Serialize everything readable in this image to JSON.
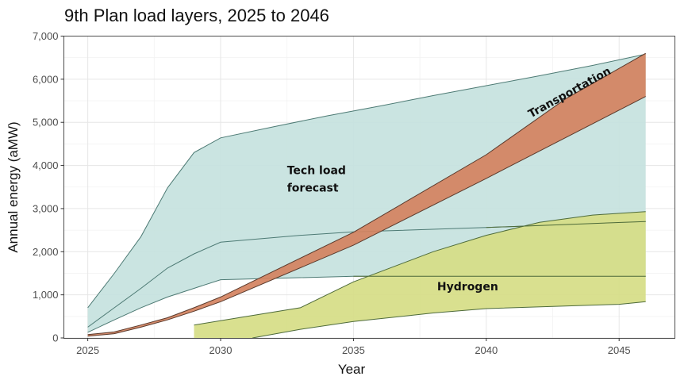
{
  "chart_data": {
    "type": "area",
    "title": "9th Plan load layers, 2025 to 2046",
    "xlabel": "Year",
    "ylabel": "Annual energy (aMW)",
    "xlim": [
      2024.1,
      2047.1
    ],
    "ylim": [
      0,
      7000
    ],
    "x_ticks": [
      2025,
      2030,
      2035,
      2040,
      2045
    ],
    "x_tick_labels": [
      "2025",
      "2030",
      "2035",
      "2040",
      "2045"
    ],
    "y_ticks": [
      0,
      1000,
      2000,
      3000,
      4000,
      5000,
      6000,
      7000
    ],
    "y_tick_labels": [
      "0",
      "1,000",
      "2,000",
      "3,000",
      "4,000",
      "5,000",
      "6,000",
      "7,000"
    ],
    "grid": true,
    "legend": "none",
    "series": [
      {
        "name": "Tech load forecast",
        "fill": "#c5e2de",
        "line": "#4d7a74",
        "upper": [
          [
            2025,
            700
          ],
          [
            2026,
            1500
          ],
          [
            2027,
            2350
          ],
          [
            2028,
            3480
          ],
          [
            2029,
            4300
          ],
          [
            2030,
            4640
          ],
          [
            2032,
            4900
          ],
          [
            2034,
            5150
          ],
          [
            2036,
            5380
          ],
          [
            2038,
            5620
          ],
          [
            2040,
            5850
          ],
          [
            2042,
            6080
          ],
          [
            2044,
            6320
          ],
          [
            2046,
            6580
          ]
        ],
        "middle": [
          [
            2025,
            250
          ],
          [
            2026,
            700
          ],
          [
            2027,
            1150
          ],
          [
            2028,
            1620
          ],
          [
            2029,
            1950
          ],
          [
            2030,
            2220
          ],
          [
            2033,
            2380
          ],
          [
            2035,
            2460
          ],
          [
            2040,
            2560
          ],
          [
            2046,
            2700
          ]
        ],
        "lower": [
          [
            2025,
            130
          ],
          [
            2026,
            420
          ],
          [
            2027,
            700
          ],
          [
            2028,
            950
          ],
          [
            2029,
            1150
          ],
          [
            2030,
            1350
          ],
          [
            2035,
            1430
          ],
          [
            2046,
            1430
          ]
        ]
      },
      {
        "name": "Transportation",
        "fill": "#d4825f",
        "line": "#5a3a2c",
        "upper": [
          [
            2025,
            80
          ],
          [
            2026,
            140
          ],
          [
            2027,
            300
          ],
          [
            2028,
            470
          ],
          [
            2029,
            700
          ],
          [
            2030,
            950
          ],
          [
            2035,
            2450
          ],
          [
            2040,
            4250
          ],
          [
            2043,
            5550
          ],
          [
            2046,
            6600
          ]
        ],
        "lower": [
          [
            2025,
            40
          ],
          [
            2026,
            100
          ],
          [
            2027,
            250
          ],
          [
            2028,
            420
          ],
          [
            2029,
            620
          ],
          [
            2030,
            840
          ],
          [
            2035,
            2150
          ],
          [
            2040,
            3700
          ],
          [
            2046,
            5600
          ]
        ]
      },
      {
        "name": "Hydrogen",
        "fill": "#d6dd85",
        "line": "#4e6b3a",
        "upper": [
          [
            2029,
            300
          ],
          [
            2031,
            500
          ],
          [
            2033,
            700
          ],
          [
            2035,
            1300
          ],
          [
            2038,
            2000
          ],
          [
            2040,
            2380
          ],
          [
            2042,
            2680
          ],
          [
            2044,
            2850
          ],
          [
            2046,
            2930
          ]
        ],
        "lower": [
          [
            2029,
            0
          ],
          [
            2031.2,
            0
          ],
          [
            2033,
            200
          ],
          [
            2035,
            380
          ],
          [
            2038,
            580
          ],
          [
            2040,
            680
          ],
          [
            2045,
            780
          ],
          [
            2046,
            840
          ]
        ]
      }
    ],
    "annotations": [
      {
        "text": "Tech load forecast",
        "lines": [
          "Tech load",
          "forecast"
        ],
        "x": 2032.5,
        "y": 3800
      },
      {
        "text": "Transportation",
        "x": 2043.2,
        "y": 5620,
        "rotation_deg": -29
      },
      {
        "text": "Hydrogen",
        "x": 2039.3,
        "y": 1100
      }
    ]
  }
}
